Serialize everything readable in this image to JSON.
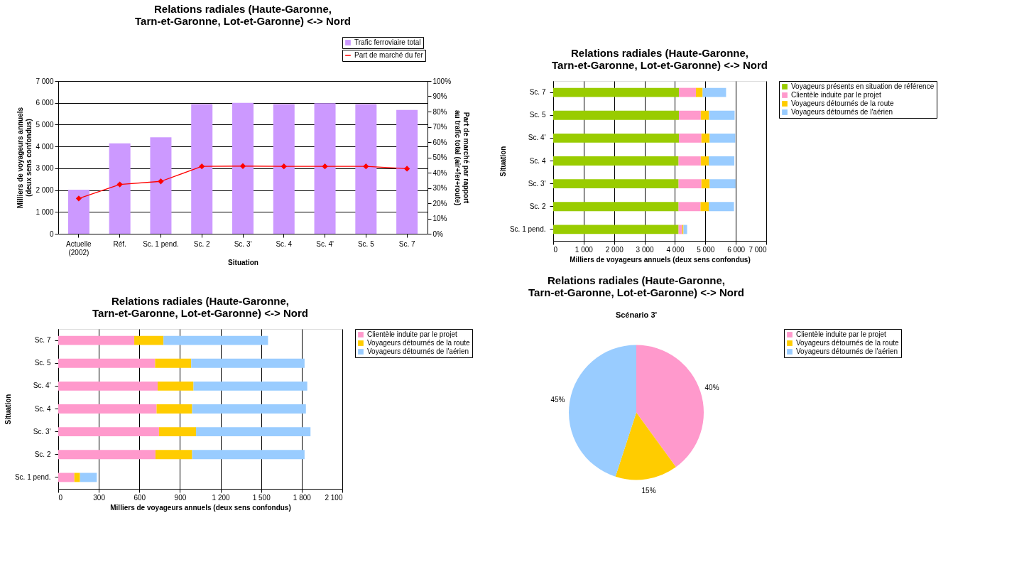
{
  "chart_data": [
    {
      "type": "bar",
      "title": "Relations radiales (Haute-Garonne,\nTarn-et-Garonne, Lot-et-Garonne) <-> Nord",
      "xlabel": "Situation",
      "ylabel": "Milliers de voyageurs annuels\n(deux sens confondus)",
      "y2label": "Part de marché par rapport\nau trafic total (air+fer+route)",
      "categories": [
        "Actuelle\n(2002)",
        "Réf.",
        "Sc. 1 pend.",
        "Sc. 2",
        "Sc. 3'",
        "Sc. 4",
        "Sc. 4'",
        "Sc. 5",
        "Sc. 7"
      ],
      "series": [
        {
          "name": "Trafic ferroviaire total",
          "type": "bar",
          "color": "#cc99ff",
          "values": [
            2020,
            4140,
            4420,
            5940,
            6000,
            5940,
            5980,
            5940,
            5670
          ]
        },
        {
          "name": "Part de marché du fer",
          "type": "line",
          "axis": "y2",
          "color": "#ff0000",
          "values": [
            23.1,
            32.3,
            34.3,
            44.1,
            44.3,
            44.1,
            44.1,
            44.1,
            42.6
          ]
        }
      ],
      "ylim": [
        0,
        7000
      ],
      "yticks": [
        0,
        {
          "value": 1000,
          "label": "1 000"
        },
        {
          "value": 2000,
          "label": "2 000"
        },
        {
          "value": 3000,
          "label": "3 000"
        },
        {
          "value": 4000,
          "label": "4 000"
        },
        {
          "value": 5000,
          "label": "5 000"
        },
        {
          "value": 6000,
          "label": "6 000"
        },
        {
          "value": 7000,
          "label": "7 000"
        }
      ],
      "y2lim": [
        0,
        100
      ],
      "y2ticks": [
        {
          "value": 0,
          "label": "0%"
        },
        {
          "value": 10,
          "label": "10%"
        },
        {
          "value": 20,
          "label": "20%"
        },
        {
          "value": 30,
          "label": "30%"
        },
        {
          "value": 40,
          "label": "40%"
        },
        {
          "value": 50,
          "label": "50%"
        },
        {
          "value": 60,
          "label": "60%"
        },
        {
          "value": 70,
          "label": "70%"
        },
        {
          "value": 80,
          "label": "80%"
        },
        {
          "value": 90,
          "label": "90%"
        },
        {
          "value": 100,
          "label": "100%"
        }
      ],
      "grid": "y",
      "legend": "top right",
      "marker": "diamond",
      "line_style": "solid"
    },
    {
      "type": "bar",
      "orientation": "horizontal",
      "stacked": true,
      "title": "Relations radiales (Haute-Garonne,\nTarn-et-Garonne, Lot-et-Garonne) <-> Nord",
      "xlabel": "Milliers de voyageurs annuels (deux sens confondus)",
      "ylabel": "Situation",
      "categories": [
        "Sc. 7",
        "Sc. 5",
        "Sc. 4'",
        "Sc. 4",
        "Sc. 3'",
        "Sc. 2",
        "Sc. 1 pend."
      ],
      "series": [
        {
          "name": "Voyageurs présents en situation de référence",
          "color": "#99cc00",
          "values": [
            4130,
            4130,
            4130,
            4120,
            4120,
            4120,
            4120
          ]
        },
        {
          "name": "Clientèle induite par le projet",
          "color": "#ff99cc",
          "values": [
            560,
            720,
            740,
            730,
            750,
            720,
            120
          ]
        },
        {
          "name": "Voyageurs détournés de la route",
          "color": "#ffcc00",
          "values": [
            220,
            270,
            270,
            260,
            270,
            270,
            40
          ]
        },
        {
          "name": "Voyageurs détournés de l'aérien",
          "color": "#99ccff",
          "values": [
            770,
            840,
            840,
            840,
            850,
            830,
            120
          ]
        }
      ],
      "xlim": [
        0,
        7000
      ],
      "xticks": [
        0,
        {
          "value": 1000,
          "label": "1 000"
        },
        {
          "value": 2000,
          "label": "2 000"
        },
        {
          "value": 3000,
          "label": "3 000"
        },
        {
          "value": 4000,
          "label": "4 000"
        },
        {
          "value": 5000,
          "label": "5 000"
        },
        {
          "value": 6000,
          "label": "6 000"
        },
        {
          "value": 7000,
          "label": "7 000"
        }
      ],
      "grid": "x",
      "legend": "right"
    },
    {
      "type": "bar",
      "orientation": "horizontal",
      "stacked": true,
      "title": "Relations radiales (Haute-Garonne,\nTarn-et-Garonne, Lot-et-Garonne) <-> Nord",
      "xlabel": "Milliers de voyageurs annuels (deux sens confondus)",
      "ylabel": "Situation",
      "categories": [
        "Sc. 7",
        "Sc. 5",
        "Sc. 4'",
        "Sc. 4",
        "Sc. 3'",
        "Sc. 2",
        "Sc. 1 pend."
      ],
      "series": [
        {
          "name": "Clientèle induite par le projet",
          "color": "#ff99cc",
          "values": [
            562,
            716,
            735,
            727,
            745,
            719,
            119
          ]
        },
        {
          "name": "Voyageurs détournés de la route",
          "color": "#ffcc00",
          "values": [
            216,
            267,
            265,
            263,
            274,
            271,
            42
          ]
        },
        {
          "name": "Voyageurs détournés de l'aérien",
          "color": "#99ccff",
          "values": [
            773,
            838,
            841,
            841,
            846,
            831,
            124
          ]
        }
      ],
      "xlim": [
        0,
        2100
      ],
      "xticks": [
        0,
        300,
        600,
        900,
        {
          "value": 1200,
          "label": "1 200"
        },
        {
          "value": 1500,
          "label": "1 500"
        },
        {
          "value": 1800,
          "label": "1 800"
        },
        {
          "value": 2100,
          "label": "2 100"
        }
      ],
      "grid": "x",
      "legend": "right"
    },
    {
      "type": "pie",
      "title": "Relations radiales (Haute-Garonne,\nTarn-et-Garonne, Lot-et-Garonne) <-> Nord",
      "subtitle": "Scénario 3'",
      "categories": [
        "Clientèle induite par le projet",
        "Voyageurs détournés de la route",
        "Voyageurs détournés de l'aérien"
      ],
      "values": [
        40,
        15,
        45
      ],
      "colors": [
        "#ff99cc",
        "#ffcc00",
        "#99ccff"
      ],
      "value_labels": [
        "40%",
        "15%",
        "45%"
      ],
      "legend": "right"
    }
  ]
}
